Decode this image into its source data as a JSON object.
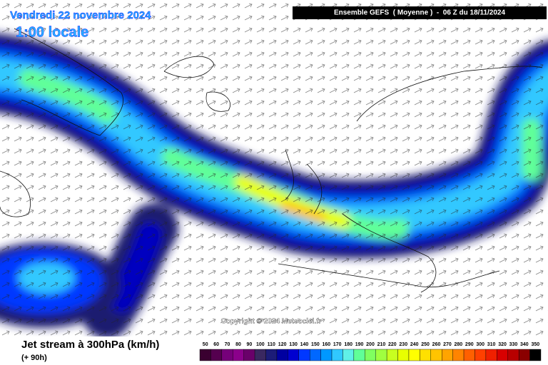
{
  "header": {
    "date": "Vendredi 22 novembre 2024",
    "time": "1:00 locale",
    "run": "Ensemble GEFS  ( Moyenne )  -  06 Z du 18/11/2024"
  },
  "copyright": "Copyright © 2024 Meteociel.fr",
  "footer": {
    "title": "Jet stream à 300hPa (km/h)",
    "lead": "(+ 90h)"
  },
  "legend": {
    "ticks": [
      50,
      60,
      70,
      80,
      90,
      100,
      110,
      120,
      130,
      140,
      150,
      160,
      170,
      180,
      190,
      200,
      210,
      220,
      230,
      240,
      250,
      260,
      270,
      280,
      290,
      300,
      310,
      320,
      330,
      340,
      350
    ],
    "colors": [
      "#3a0030",
      "#55004f",
      "#76007a",
      "#8b008b",
      "#6a006a",
      "#3a2860",
      "#1c1c78",
      "#0000a0",
      "#0000d0",
      "#0038ff",
      "#0068ff",
      "#0098ff",
      "#30c8ff",
      "#60f0e8",
      "#60ff98",
      "#80ff60",
      "#a0ff40",
      "#c8ff20",
      "#e8ff00",
      "#ffff00",
      "#ffe000",
      "#ffc400",
      "#ffa400",
      "#ff8400",
      "#ff6000",
      "#ff4000",
      "#f02000",
      "#d80000",
      "#b80000",
      "#8a0000",
      "#000000"
    ]
  }
}
